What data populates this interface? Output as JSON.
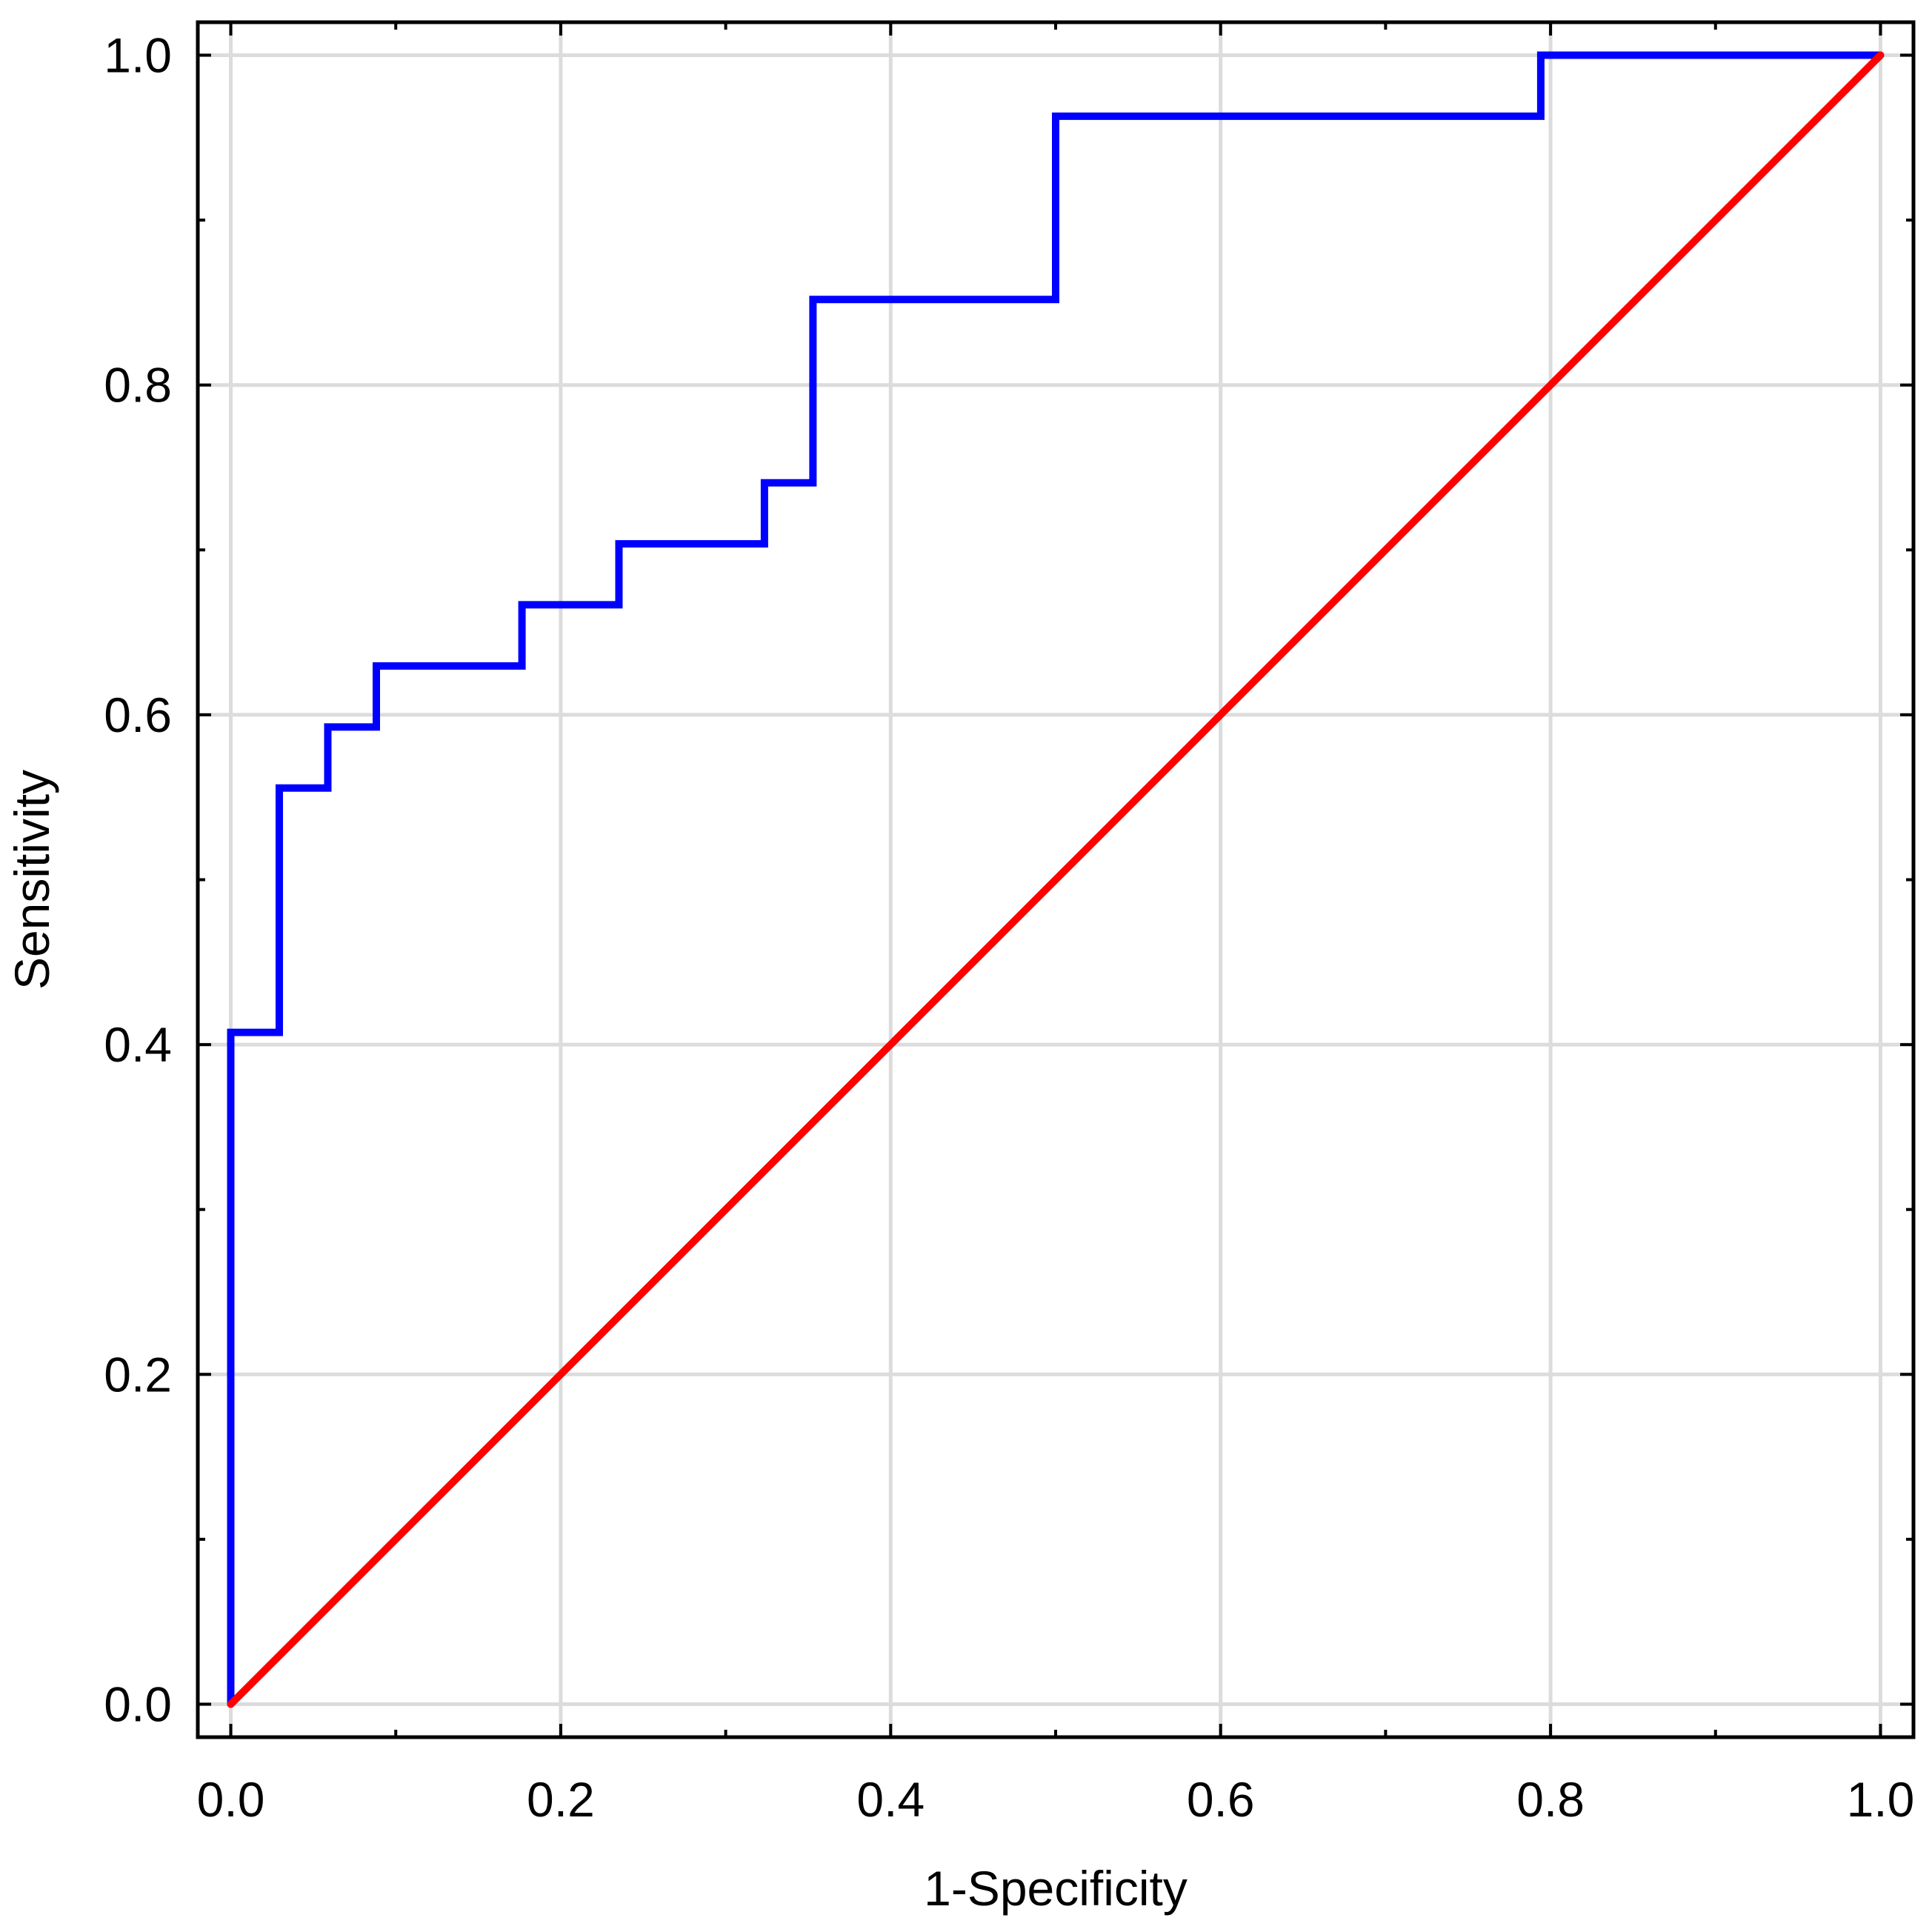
{
  "chart_data": {
    "type": "line",
    "title": "",
    "xlabel": "1-Specificity",
    "ylabel": "Sensitivity",
    "xlim": [
      -0.02,
      1.02
    ],
    "ylim": [
      -0.02,
      1.02
    ],
    "x_ticks": [
      "0.0",
      "0.2",
      "0.4",
      "0.6",
      "0.8",
      "1.0"
    ],
    "y_ticks": [
      "0.0",
      "0.2",
      "0.4",
      "0.6",
      "0.8",
      "1.0"
    ],
    "x_minor_ticks": [
      0.1,
      0.3,
      0.5,
      0.7,
      0.9
    ],
    "y_minor_ticks": [
      0.1,
      0.3,
      0.5,
      0.7,
      0.9
    ],
    "grid": true,
    "legend": "none",
    "series": [
      {
        "color": "#0000ff",
        "step": true,
        "x": [
          0.0,
          0.0,
          0.0294,
          0.0294,
          0.0588,
          0.0588,
          0.0882,
          0.0882,
          0.1765,
          0.1765,
          0.2353,
          0.2353,
          0.3235,
          0.3235,
          0.3529,
          0.3529,
          0.5,
          0.5,
          0.7941,
          0.7941,
          1.0
        ],
        "y": [
          0.0,
          0.4074,
          0.4074,
          0.5556,
          0.5556,
          0.5926,
          0.5926,
          0.6296,
          0.6296,
          0.6667,
          0.6667,
          0.7037,
          0.7037,
          0.7407,
          0.7407,
          0.8519,
          0.8519,
          0.963,
          0.963,
          1.0,
          1.0
        ]
      },
      {
        "color": "#ff0000",
        "step": false,
        "x": [
          0.0,
          1.0
        ],
        "y": [
          0.0,
          1.0
        ]
      }
    ]
  }
}
